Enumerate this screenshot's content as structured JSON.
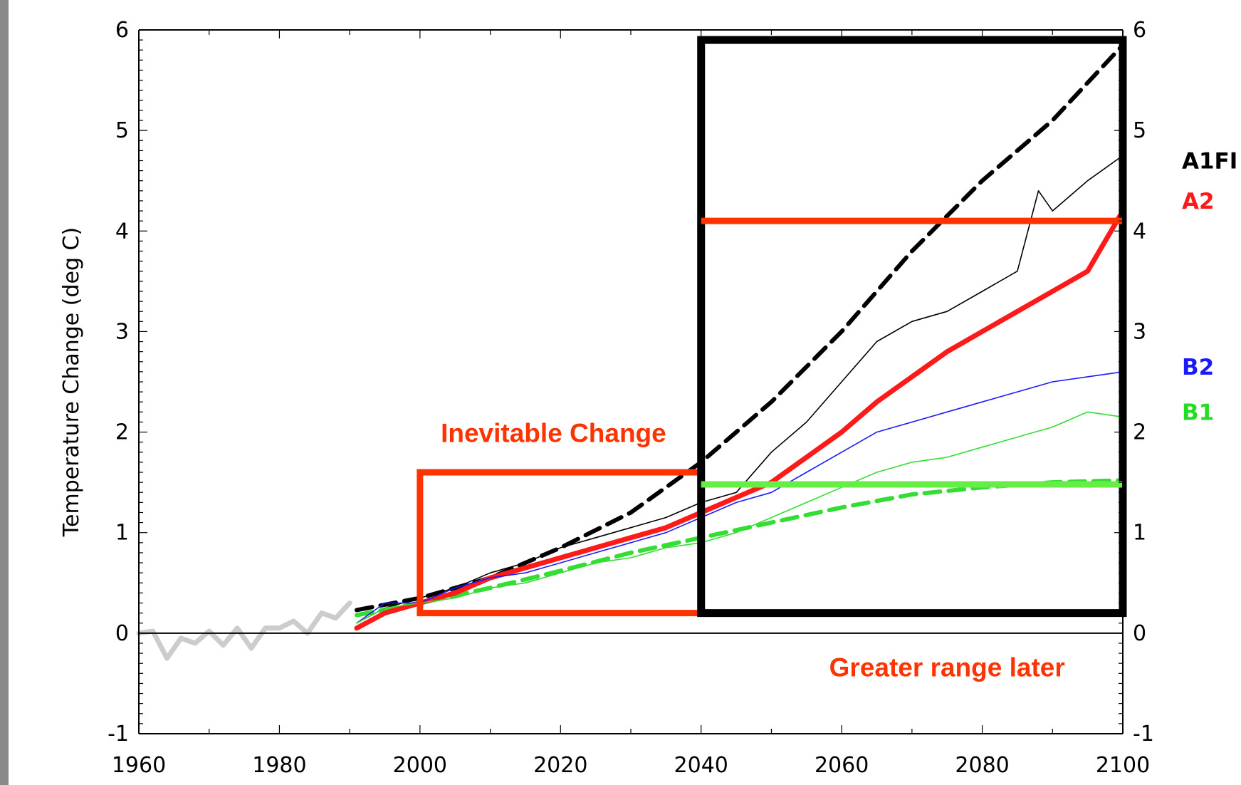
{
  "chart_data": {
    "type": "line",
    "xlabel": "",
    "ylabel": "Temperature Change (deg C)",
    "xlim": [
      1960,
      2100
    ],
    "ylim": [
      -1,
      6
    ],
    "x_ticks": [
      "1960",
      "1980",
      "2000",
      "2020",
      "2040",
      "2060",
      "2080",
      "2100"
    ],
    "y_ticks": [
      "-1",
      "0",
      "1",
      "2",
      "3",
      "4",
      "5",
      "6"
    ],
    "grid": false,
    "legend_position": "right",
    "legend": [
      {
        "label": "A1FI",
        "color": "#000000"
      },
      {
        "label": "A2",
        "color": "#ff1a1a"
      },
      {
        "label": "B2",
        "color": "#1a1aff"
      },
      {
        "label": "B1",
        "color": "#22dd22"
      }
    ],
    "annotations": [
      {
        "text": "Inevitable Change",
        "color": "#ff3300"
      },
      {
        "text": "Greater range later",
        "color": "#ff3300"
      }
    ],
    "series": [
      {
        "color": "#cccccc",
        "style": "observed",
        "x": [
          1960,
          1962,
          1964,
          1966,
          1968,
          1970,
          1972,
          1974,
          1976,
          1978,
          1980,
          1982,
          1984,
          1986,
          1988,
          1990
        ],
        "y": [
          0.0,
          0.02,
          -0.25,
          -0.05,
          -0.1,
          0.02,
          -0.12,
          0.05,
          -0.15,
          0.05,
          0.05,
          0.12,
          0.0,
          0.2,
          0.15,
          0.3
        ]
      },
      {
        "name": "A1FI",
        "color": "#000000",
        "style": "dashed",
        "x": [
          1991,
          2000,
          2010,
          2020,
          2030,
          2040,
          2050,
          2060,
          2070,
          2080,
          2090,
          2100
        ],
        "y": [
          0.23,
          0.35,
          0.55,
          0.85,
          1.2,
          1.7,
          2.3,
          3.0,
          3.8,
          4.5,
          5.1,
          5.85
        ]
      },
      {
        "name": "B1",
        "color": "#33dd33",
        "style": "dashed",
        "x": [
          1991,
          2000,
          2010,
          2020,
          2030,
          2040,
          2050,
          2060,
          2070,
          2080,
          2090,
          2100
        ],
        "y": [
          0.18,
          0.3,
          0.45,
          0.62,
          0.8,
          0.95,
          1.1,
          1.25,
          1.38,
          1.45,
          1.5,
          1.52
        ]
      },
      {
        "name": "A1FI",
        "color": "#000000",
        "style": "thin",
        "x": [
          1991,
          1995,
          2000,
          2005,
          2010,
          2015,
          2020,
          2025,
          2030,
          2035,
          2040,
          2045,
          2050,
          2055,
          2060,
          2065,
          2070,
          2075,
          2080,
          2085,
          2088,
          2090,
          2095,
          2100
        ],
        "y": [
          0.1,
          0.25,
          0.35,
          0.45,
          0.6,
          0.7,
          0.85,
          0.95,
          1.05,
          1.15,
          1.3,
          1.4,
          1.8,
          2.1,
          2.5,
          2.9,
          3.1,
          3.2,
          3.4,
          3.6,
          4.4,
          4.2,
          4.5,
          4.75
        ]
      },
      {
        "name": "A2",
        "color": "#ff1a1a",
        "style": "thick",
        "x": [
          1991,
          1995,
          2000,
          2005,
          2010,
          2015,
          2020,
          2025,
          2030,
          2035,
          2040,
          2045,
          2050,
          2055,
          2060,
          2065,
          2070,
          2075,
          2080,
          2085,
          2090,
          2095,
          2100
        ],
        "y": [
          0.05,
          0.2,
          0.3,
          0.4,
          0.55,
          0.65,
          0.75,
          0.85,
          0.95,
          1.05,
          1.2,
          1.35,
          1.5,
          1.75,
          2.0,
          2.3,
          2.55,
          2.8,
          3.0,
          3.2,
          3.4,
          3.6,
          4.2
        ]
      },
      {
        "name": "B2",
        "color": "#1a1aff",
        "style": "thin",
        "x": [
          1991,
          1995,
          2000,
          2005,
          2010,
          2015,
          2020,
          2025,
          2030,
          2035,
          2040,
          2045,
          2050,
          2055,
          2060,
          2065,
          2070,
          2075,
          2080,
          2085,
          2090,
          2095,
          2100
        ],
        "y": [
          0.1,
          0.3,
          0.3,
          0.45,
          0.55,
          0.6,
          0.7,
          0.8,
          0.9,
          1.0,
          1.15,
          1.3,
          1.4,
          1.6,
          1.8,
          2.0,
          2.1,
          2.2,
          2.3,
          2.4,
          2.5,
          2.55,
          2.6
        ]
      },
      {
        "name": "B1",
        "color": "#33dd33",
        "style": "thin",
        "x": [
          1991,
          1995,
          2000,
          2005,
          2010,
          2015,
          2020,
          2025,
          2030,
          2035,
          2040,
          2045,
          2050,
          2055,
          2060,
          2065,
          2070,
          2075,
          2080,
          2085,
          2090,
          2095,
          2100
        ],
        "y": [
          0.1,
          0.25,
          0.3,
          0.35,
          0.45,
          0.5,
          0.6,
          0.7,
          0.75,
          0.85,
          0.9,
          1.0,
          1.15,
          1.3,
          1.45,
          1.6,
          1.7,
          1.75,
          1.85,
          1.95,
          2.05,
          2.2,
          2.15
        ]
      }
    ],
    "highlight_boxes": [
      {
        "color": "#ff3300",
        "x_range": [
          2000,
          2040
        ],
        "y_range": [
          0.2,
          1.6
        ]
      },
      {
        "color": "#000000",
        "x_range": [
          2040,
          2100
        ],
        "y_range": [
          0.2,
          5.9
        ]
      }
    ],
    "reference_lines": [
      {
        "color": "#ff3300",
        "x_range": [
          2040,
          2100
        ],
        "y": 4.1
      },
      {
        "color": "#66ee44",
        "x_range": [
          2040,
          2100
        ],
        "y": 1.48
      }
    ]
  }
}
